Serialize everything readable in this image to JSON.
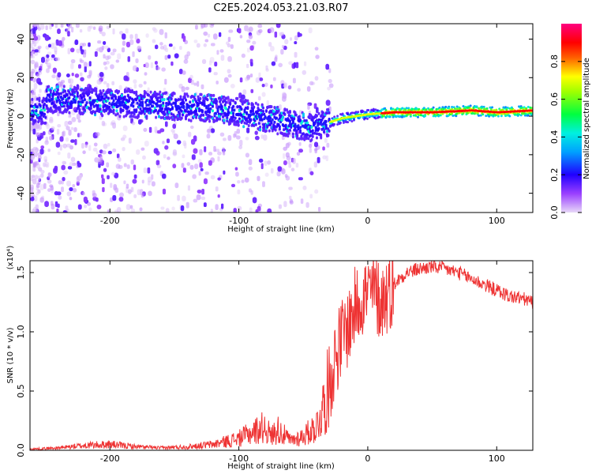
{
  "title": "C2E5.2024.053.21.03.R07",
  "chart_data": [
    {
      "type": "heatmap",
      "xlabel": "Height of straight line (km)",
      "ylabel": "Frequency (Hz)",
      "xlim": [
        -262,
        128
      ],
      "ylim": [
        -50,
        48
      ],
      "xticks": [
        -200,
        -100,
        0,
        100
      ],
      "yticks": [
        -40,
        -20,
        0,
        20,
        40
      ],
      "colorbar": {
        "label": "Normalized spectral amplitude",
        "range": [
          0,
          1
        ],
        "ticks": [
          "0.0",
          "0.2",
          "0.4",
          "0.6",
          "0.8"
        ],
        "colormap": [
          "#e8d8f8",
          "#7a00ff",
          "#0000ff",
          "#00e8ff",
          "#00ff00",
          "#ffff00",
          "#ff0000",
          "#ff00a0"
        ]
      },
      "ridge": {
        "x": [
          -250,
          -200,
          -150,
          -120,
          -100,
          -80,
          -60,
          -45,
          -35,
          -20,
          0,
          20,
          50,
          80,
          100,
          128
        ],
        "freq": [
          9,
          7,
          5,
          4,
          2,
          -1,
          -4,
          -6,
          -4,
          -1,
          1,
          2,
          2,
          3,
          2,
          3
        ]
      },
      "grid": false
    },
    {
      "type": "line",
      "xlabel": "Height of straight line (km)",
      "ylabel": "SNR (10 * v/v)",
      "y_multiplier": "(x10⁴)",
      "xlim": [
        -262,
        128
      ],
      "ylim": [
        0,
        1.6
      ],
      "xticks": [
        -200,
        -100,
        0,
        100
      ],
      "yticks": [
        "0.0",
        "0.5",
        "1.0",
        "1.5"
      ],
      "series": [
        {
          "color": "#ee3333",
          "x": [
            -262,
            -240,
            -220,
            -200,
            -180,
            -160,
            -140,
            -120,
            -100,
            -90,
            -80,
            -75,
            -70,
            -60,
            -50,
            -40,
            -35,
            -30,
            -25,
            -20,
            -15,
            -10,
            -5,
            0,
            5,
            10,
            20,
            30,
            40,
            50,
            60,
            70,
            80,
            90,
            100,
            110,
            120,
            128
          ],
          "y": [
            0.01,
            0.02,
            0.04,
            0.05,
            0.03,
            0.02,
            0.03,
            0.05,
            0.1,
            0.15,
            0.2,
            0.12,
            0.18,
            0.08,
            0.12,
            0.2,
            0.35,
            0.55,
            0.8,
            0.95,
            1.05,
            1.2,
            1.3,
            1.32,
            1.35,
            1.25,
            1.4,
            1.5,
            1.53,
            1.55,
            1.53,
            1.5,
            1.45,
            1.4,
            1.35,
            1.3,
            1.28,
            1.25
          ]
        }
      ],
      "grid": false
    }
  ]
}
